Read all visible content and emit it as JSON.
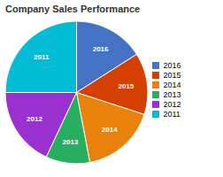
{
  "chart_data": {
    "type": "pie",
    "title": "Company Sales Performance",
    "categories": [
      "2016",
      "2015",
      "2014",
      "2013",
      "2012",
      "2011"
    ],
    "values": [
      16,
      14,
      17,
      10,
      18,
      25
    ],
    "colors": [
      "#4472C4",
      "#D44000",
      "#E8820A",
      "#27AE60",
      "#9B30D0",
      "#00BCD4"
    ],
    "legend": "right"
  }
}
